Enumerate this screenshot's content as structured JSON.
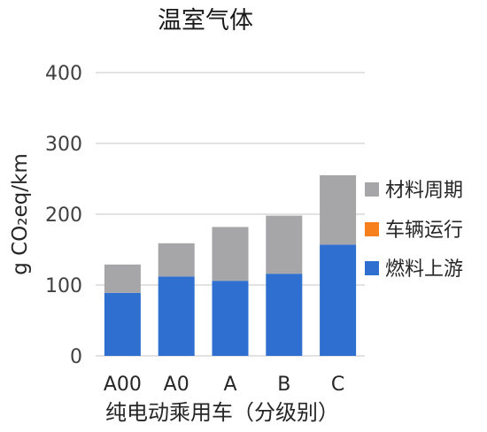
{
  "chart_data": {
    "type": "bar",
    "stacked": true,
    "title": "温室气体",
    "xlabel": "纯电动乘用车（分级别）",
    "ylabel": "g CO₂eq/km",
    "ylim": [
      0,
      400
    ],
    "yticks": [
      "0",
      "100",
      "200",
      "300",
      "400"
    ],
    "grid": true,
    "legend_position": "right",
    "categories": [
      "A00",
      "A0",
      "A",
      "B",
      "C"
    ],
    "series": [
      {
        "name": "燃料上游",
        "color": "#2f6fd0",
        "values": [
          89,
          112,
          106,
          116,
          157
        ]
      },
      {
        "name": "车辆运行",
        "color": "#f7801c",
        "values": [
          0,
          0,
          0,
          0,
          0
        ]
      },
      {
        "name": "材料周期",
        "color": "#a6a6a8",
        "values": [
          40,
          47,
          76,
          82,
          98
        ]
      }
    ],
    "legend_order": [
      "材料周期",
      "车辆运行",
      "燃料上游"
    ]
  }
}
